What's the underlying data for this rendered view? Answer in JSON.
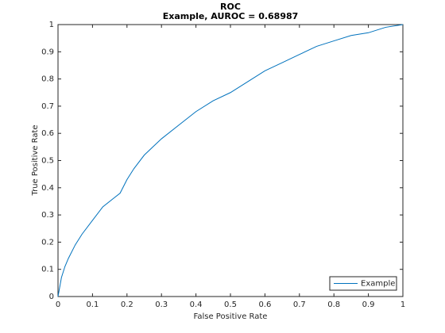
{
  "chart_data": {
    "type": "line",
    "title": "ROC",
    "subtitle": "Example, AUROC = 0.68987",
    "x_label": "False Positive Rate",
    "y_label": "True Positive Rate",
    "x": [
      0,
      0.01,
      0.02,
      0.03,
      0.05,
      0.07,
      0.1,
      0.13,
      0.16,
      0.18,
      0.2,
      0.22,
      0.25,
      0.3,
      0.35,
      0.4,
      0.45,
      0.5,
      0.55,
      0.6,
      0.65,
      0.7,
      0.75,
      0.8,
      0.85,
      0.9,
      0.95,
      1
    ],
    "series": [
      {
        "name": "Example",
        "color": "#0072bd",
        "values": [
          0,
          0.07,
          0.11,
          0.14,
          0.19,
          0.23,
          0.28,
          0.33,
          0.36,
          0.38,
          0.43,
          0.47,
          0.52,
          0.58,
          0.63,
          0.68,
          0.72,
          0.75,
          0.79,
          0.83,
          0.86,
          0.89,
          0.92,
          0.94,
          0.96,
          0.97,
          0.99,
          1
        ]
      }
    ],
    "xlim": [
      0,
      1
    ],
    "ylim": [
      0,
      1
    ],
    "xticks": [
      0,
      0.1,
      0.2,
      0.3,
      0.4,
      0.5,
      0.6,
      0.7,
      0.8,
      0.9,
      1
    ],
    "yticks": [
      0,
      0.1,
      0.2,
      0.3,
      0.4,
      0.5,
      0.6,
      0.7,
      0.8,
      0.9,
      1
    ],
    "grid": false,
    "legend": "southeast"
  }
}
